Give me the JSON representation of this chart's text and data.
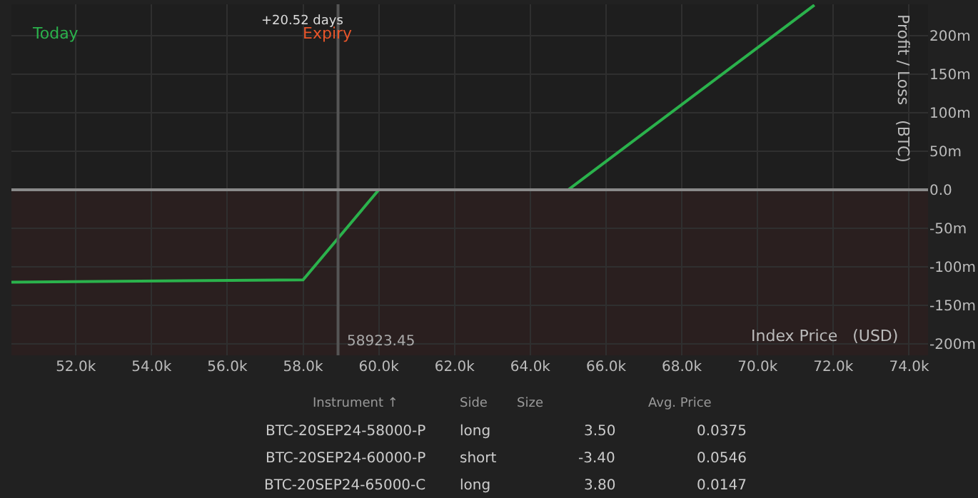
{
  "chart_data": {
    "type": "line",
    "xlabel": "Index Price   (USD)",
    "ylabel": "Profit / Loss   (BTC)",
    "x": [
      50300,
      58000,
      60000,
      65000,
      71500
    ],
    "series": [
      {
        "color": "#2bb24c",
        "values": [
          -120,
          -117,
          0,
          0,
          240
        ]
      }
    ],
    "xlim": [
      50300,
      74500
    ],
    "xticks": [
      {
        "value": 52000,
        "label": "52.0k"
      },
      {
        "value": 54000,
        "label": "54.0k"
      },
      {
        "value": 56000,
        "label": "56.0k"
      },
      {
        "value": 58000,
        "label": "58.0k"
      },
      {
        "value": 60000,
        "label": "60.0k"
      },
      {
        "value": 62000,
        "label": "62.0k"
      },
      {
        "value": 64000,
        "label": "64.0k"
      },
      {
        "value": 66000,
        "label": "66.0k"
      },
      {
        "value": 68000,
        "label": "68.0k"
      },
      {
        "value": 70000,
        "label": "70.0k"
      },
      {
        "value": 72000,
        "label": "72.0k"
      },
      {
        "value": 74000,
        "label": "74.0k"
      }
    ],
    "ylim": [
      -215,
      241
    ],
    "yticks": [
      {
        "value": -200,
        "label": "-200m"
      },
      {
        "value": -150,
        "label": "-150m"
      },
      {
        "value": -100,
        "label": "-100m"
      },
      {
        "value": -50,
        "label": "-50m"
      },
      {
        "value": 0,
        "label": "0.0"
      },
      {
        "value": 50,
        "label": "50m"
      },
      {
        "value": 100,
        "label": "100m"
      },
      {
        "value": 150,
        "label": "150m"
      },
      {
        "value": 200,
        "label": "200m"
      }
    ],
    "grid": true,
    "marker": "none",
    "line_style": "solid",
    "ref_lines": [
      {
        "axis": "x",
        "value": 58923.45,
        "label": "58923.45",
        "color": "#555555"
      },
      {
        "axis": "y",
        "value": 0,
        "color": "#8a8a8a"
      }
    ],
    "bands": [
      {
        "axis": "y",
        "from": -215,
        "to": 0,
        "color": "#2a1f1f"
      }
    ],
    "annotations": [
      "Today",
      "Expiry",
      "+20.52 days",
      "Instrument ↑",
      "Side",
      "Size",
      "Avg. Price",
      "BTC-20SEP24-58000-P",
      "long",
      "3.50",
      "0.0375",
      "BTC-20SEP24-60000-P",
      "short",
      "-3.40",
      "0.0546",
      "BTC-20SEP24-65000-C",
      "long",
      "3.80",
      "0.0147"
    ]
  }
}
